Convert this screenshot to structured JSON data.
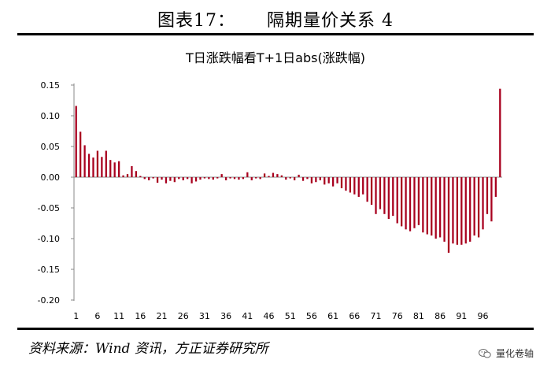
{
  "header": {
    "figure_label": "图表17：",
    "figure_title": "隔期量价关系 4"
  },
  "source": "资料来源：Wind 资讯，方正证券研究所",
  "watermark": {
    "text": "量化卷轴",
    "icon": "wechat-icon"
  },
  "chart_data": {
    "type": "bar",
    "title": "T日涨跌幅看T+1日abs(涨跌幅)",
    "xlabel": "",
    "ylabel": "",
    "x": [
      1,
      2,
      3,
      4,
      5,
      6,
      7,
      8,
      9,
      10,
      11,
      12,
      13,
      14,
      15,
      16,
      17,
      18,
      19,
      20,
      21,
      22,
      23,
      24,
      25,
      26,
      27,
      28,
      29,
      30,
      31,
      32,
      33,
      34,
      35,
      36,
      37,
      38,
      39,
      40,
      41,
      42,
      43,
      44,
      45,
      46,
      47,
      48,
      49,
      50,
      51,
      52,
      53,
      54,
      55,
      56,
      57,
      58,
      59,
      60,
      61,
      62,
      63,
      64,
      65,
      66,
      67,
      68,
      69,
      70,
      71,
      72,
      73,
      74,
      75,
      76,
      77,
      78,
      79,
      80,
      81,
      82,
      83,
      84,
      85,
      86,
      87,
      88,
      89,
      90,
      91,
      92,
      93,
      94,
      95,
      96,
      97,
      98,
      99,
      100
    ],
    "x_tick_labels": [
      "1",
      "6",
      "11",
      "16",
      "21",
      "26",
      "31",
      "36",
      "41",
      "46",
      "51",
      "56",
      "61",
      "66",
      "71",
      "76",
      "81",
      "86",
      "91",
      "96"
    ],
    "values": [
      0.116,
      0.074,
      0.052,
      0.038,
      0.032,
      0.043,
      0.033,
      0.043,
      0.028,
      0.024,
      0.026,
      0.003,
      0.005,
      0.018,
      0.01,
      0.002,
      -0.003,
      -0.005,
      -0.002,
      -0.009,
      -0.004,
      -0.01,
      -0.006,
      -0.008,
      -0.003,
      -0.005,
      -0.003,
      -0.01,
      -0.007,
      -0.004,
      -0.002,
      -0.003,
      -0.004,
      -0.002,
      0.005,
      -0.005,
      -0.002,
      -0.003,
      -0.004,
      -0.003,
      0.008,
      -0.005,
      -0.002,
      -0.003,
      0.006,
      0.002,
      0.007,
      0.005,
      0.003,
      -0.004,
      -0.002,
      -0.005,
      0.004,
      -0.006,
      -0.003,
      -0.01,
      -0.008,
      -0.005,
      -0.012,
      -0.01,
      -0.015,
      -0.01,
      -0.018,
      -0.022,
      -0.025,
      -0.028,
      -0.032,
      -0.028,
      -0.04,
      -0.045,
      -0.06,
      -0.052,
      -0.06,
      -0.068,
      -0.063,
      -0.075,
      -0.08,
      -0.085,
      -0.088,
      -0.083,
      -0.078,
      -0.09,
      -0.093,
      -0.095,
      -0.1,
      -0.098,
      -0.105,
      -0.123,
      -0.108,
      -0.11,
      -0.11,
      -0.108,
      -0.105,
      -0.095,
      -0.098,
      -0.085,
      -0.06,
      -0.072,
      -0.032,
      0.144
    ],
    "first_bar_is_placeholder": false,
    "ylim": [
      -0.2,
      0.15
    ],
    "yticks": [
      "0.15",
      "0.10",
      "0.05",
      "0.00",
      "-0.05",
      "-0.10",
      "-0.15",
      "-0.20"
    ],
    "ytick_values": [
      0.15,
      0.1,
      0.05,
      0.0,
      -0.05,
      -0.1,
      -0.15,
      -0.2
    ],
    "bar_color": "#a8001e",
    "grid": false,
    "legend": "none"
  }
}
